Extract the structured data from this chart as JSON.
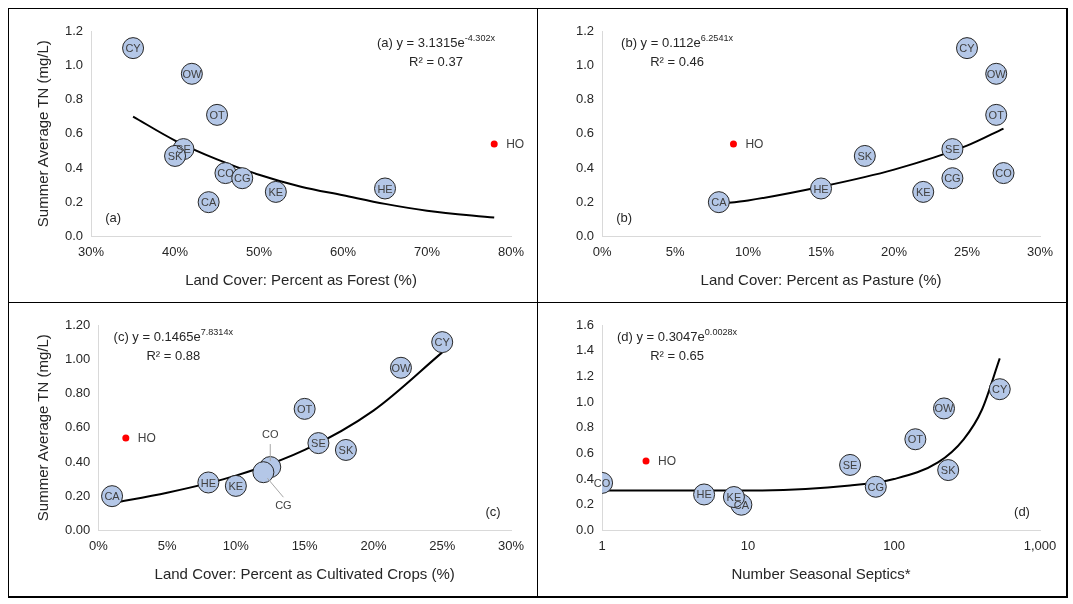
{
  "chart_data": [
    {
      "type": "scatter",
      "xlabel": "Land Cover: Percent as Forest (%)",
      "ylabel": "Summer Average TN (mg/L)",
      "marker": "circle",
      "grid": false,
      "legend": false,
      "xlim": [
        30,
        80
      ],
      "xticks": [
        {
          "value": 30,
          "label": "30%"
        },
        {
          "value": 40,
          "label": "40%"
        },
        {
          "value": 50,
          "label": "50%"
        },
        {
          "value": 60,
          "label": "60%"
        },
        {
          "value": 70,
          "label": "70%"
        },
        {
          "value": 80,
          "label": "80%"
        }
      ],
      "ylim": [
        0,
        1.2
      ],
      "yticks": [
        {
          "value": 0,
          "label": "0.0"
        },
        {
          "value": 0.2,
          "label": "0.2"
        },
        {
          "value": 0.4,
          "label": "0.4"
        },
        {
          "value": 0.6,
          "label": "0.6"
        },
        {
          "value": 0.8,
          "label": "0.8"
        },
        {
          "value": 1,
          "label": "1.0"
        },
        {
          "value": 1.2,
          "label": "1.2"
        }
      ],
      "series": [
        {
          "type": "scatter",
          "color": "#b4c7e7",
          "x": [
            35,
            42,
            45,
            41,
            40,
            46,
            48,
            44,
            52,
            65
          ],
          "values": [
            1.1,
            0.95,
            0.71,
            0.51,
            0.47,
            0.37,
            0.34,
            0.2,
            0.26,
            0.28
          ]
        },
        {
          "type": "scatter",
          "name": "HO",
          "color": "#ff0000",
          "x": [
            78
          ],
          "values": [
            0.54
          ]
        },
        {
          "type": "line",
          "color": "#000000",
          "marker": "none",
          "x": [
            35,
            40,
            45,
            50,
            55,
            60,
            65,
            70,
            78
          ],
          "values": [
            0.7,
            0.56,
            0.45,
            0.36,
            0.29,
            0.24,
            0.19,
            0.15,
            0.11
          ]
        }
      ],
      "annotations": [
        {
          "text": "CY",
          "x": 35,
          "y": 1.1
        },
        {
          "text": "OW",
          "x": 42,
          "y": 0.95
        },
        {
          "text": "OT",
          "x": 45,
          "y": 0.71
        },
        {
          "text": "SE",
          "x": 41,
          "y": 0.51
        },
        {
          "text": "SK",
          "x": 40,
          "y": 0.47
        },
        {
          "text": "CO",
          "x": 46,
          "y": 0.37
        },
        {
          "text": "CG",
          "x": 48,
          "y": 0.34
        },
        {
          "text": "CA",
          "x": 44,
          "y": 0.2
        },
        {
          "text": "KE",
          "x": 52,
          "y": 0.26
        },
        {
          "text": "HE",
          "x": 65,
          "y": 0.28
        },
        "(a) y = 3.1315e$^{-4.302x}$",
        "R² = 0.37",
        "(a)"
      ]
    },
    {
      "type": "scatter",
      "xlabel": "Land Cover: Percent as Pasture (%)",
      "marker": "circle",
      "grid": false,
      "legend": false,
      "xlim": [
        0,
        30
      ],
      "xticks": [
        {
          "value": 0,
          "label": "0%"
        },
        {
          "value": 5,
          "label": "5%"
        },
        {
          "value": 10,
          "label": "10%"
        },
        {
          "value": 15,
          "label": "15%"
        },
        {
          "value": 20,
          "label": "20%"
        },
        {
          "value": 25,
          "label": "25%"
        },
        {
          "value": 30,
          "label": "30%"
        }
      ],
      "ylim": [
        0,
        1.2
      ],
      "yticks": [
        {
          "value": 0,
          "label": "0.0"
        },
        {
          "value": 0.2,
          "label": "0.2"
        },
        {
          "value": 0.4,
          "label": "0.4"
        },
        {
          "value": 0.6,
          "label": "0.6"
        },
        {
          "value": 0.8,
          "label": "0.8"
        },
        {
          "value": 1,
          "label": "1.0"
        },
        {
          "value": 1.2,
          "label": "1.2"
        }
      ],
      "series": [
        {
          "type": "scatter",
          "color": "#b4c7e7",
          "x": [
            25,
            27,
            27,
            24,
            18,
            27.5,
            24,
            8,
            22,
            15
          ],
          "values": [
            1.1,
            0.95,
            0.71,
            0.51,
            0.47,
            0.37,
            0.34,
            0.2,
            0.26,
            0.28
          ]
        },
        {
          "type": "scatter",
          "name": "HO",
          "color": "#ff0000",
          "x": [
            9
          ],
          "values": [
            0.54
          ]
        },
        {
          "type": "line",
          "color": "#000000",
          "marker": "none",
          "x": [
            8,
            10,
            15,
            20,
            25,
            27.5
          ],
          "values": [
            0.19,
            0.21,
            0.29,
            0.39,
            0.53,
            0.63
          ]
        }
      ],
      "annotations": [
        {
          "text": "CY",
          "x": 25,
          "y": 1.1
        },
        {
          "text": "OW",
          "x": 27,
          "y": 0.95
        },
        {
          "text": "OT",
          "x": 27,
          "y": 0.71
        },
        {
          "text": "SE",
          "x": 24,
          "y": 0.51
        },
        {
          "text": "SK",
          "x": 18,
          "y": 0.47
        },
        {
          "text": "CO",
          "x": 27.5,
          "y": 0.37
        },
        {
          "text": "CG",
          "x": 24,
          "y": 0.34
        },
        {
          "text": "CA",
          "x": 8,
          "y": 0.2
        },
        {
          "text": "KE",
          "x": 22,
          "y": 0.26
        },
        {
          "text": "HE",
          "x": 15,
          "y": 0.28
        },
        "(b) y = 0.112e$^{6.2541x}$",
        "R² = 0.46",
        "(b)"
      ]
    },
    {
      "type": "scatter",
      "xlabel": "Land Cover: Percent as Cultivated Crops (%)",
      "ylabel": "Summer Average TN (mg/L)",
      "marker": "circle",
      "grid": false,
      "legend": false,
      "xlim": [
        0,
        30
      ],
      "xticks": [
        {
          "value": 0,
          "label": "0%"
        },
        {
          "value": 5,
          "label": "5%"
        },
        {
          "value": 10,
          "label": "10%"
        },
        {
          "value": 15,
          "label": "15%"
        },
        {
          "value": 20,
          "label": "20%"
        },
        {
          "value": 25,
          "label": "25%"
        },
        {
          "value": 30,
          "label": "30%"
        }
      ],
      "ylim": [
        0,
        1.2
      ],
      "yticks": [
        {
          "value": 0,
          "label": "0.00"
        },
        {
          "value": 0.2,
          "label": "0.20"
        },
        {
          "value": 0.4,
          "label": "0.40"
        },
        {
          "value": 0.6,
          "label": "0.60"
        },
        {
          "value": 0.8,
          "label": "0.80"
        },
        {
          "value": 1,
          "label": "1.00"
        },
        {
          "value": 1.2,
          "label": "1.20"
        }
      ],
      "series": [
        {
          "type": "scatter",
          "color": "#b4c7e7",
          "x": [
            25,
            22,
            15,
            16,
            18,
            12.5,
            12,
            1,
            10,
            8
          ],
          "values": [
            1.1,
            0.95,
            0.71,
            0.51,
            0.47,
            0.37,
            0.34,
            0.2,
            0.26,
            0.28
          ]
        },
        {
          "type": "scatter",
          "name": "HO",
          "color": "#ff0000",
          "x": [
            2
          ],
          "values": [
            0.54
          ]
        },
        {
          "type": "line",
          "color": "#000000",
          "marker": "none",
          "x": [
            1,
            5,
            10,
            15,
            20,
            25
          ],
          "values": [
            0.16,
            0.22,
            0.32,
            0.47,
            0.7,
            1.04
          ]
        }
      ],
      "annotations": [
        {
          "text": "CY",
          "x": 25,
          "y": 1.1
        },
        {
          "text": "OW",
          "x": 22,
          "y": 0.95
        },
        {
          "text": "OT",
          "x": 15,
          "y": 0.71
        },
        {
          "text": "SE",
          "x": 16,
          "y": 0.51
        },
        {
          "text": "SK",
          "x": 18,
          "y": 0.47
        },
        {
          "text": "CO",
          "x": 12.5,
          "y": 0.37
        },
        {
          "text": "CG",
          "x": 12,
          "y": 0.34
        },
        {
          "text": "CA",
          "x": 1,
          "y": 0.2
        },
        {
          "text": "KE",
          "x": 10,
          "y": 0.26
        },
        {
          "text": "HE",
          "x": 8,
          "y": 0.28
        },
        "(c) y = 0.1465e$^{7.8314x}$",
        "R² = 0.88",
        "(c)"
      ]
    },
    {
      "type": "scatter",
      "xlabel": "Number Seasonal Septics*",
      "marker": "circle",
      "grid": false,
      "legend": false,
      "log": "x",
      "xlim": [
        1,
        1000
      ],
      "xticks": [
        1,
        10,
        100,
        {
          "value": 1000,
          "label": "1,000"
        }
      ],
      "ylim": [
        0,
        1.6
      ],
      "yticks": [
        {
          "value": 0,
          "label": "0.0"
        },
        {
          "value": 0.2,
          "label": "0.2"
        },
        {
          "value": 0.4,
          "label": "0.4"
        },
        {
          "value": 0.6,
          "label": "0.6"
        },
        {
          "value": 0.8,
          "label": "0.8"
        },
        {
          "value": 1,
          "label": "1.0"
        },
        {
          "value": 1.2,
          "label": "1.2"
        },
        {
          "value": 1.4,
          "label": "1.4"
        },
        {
          "value": 1.6,
          "label": "1.6"
        }
      ],
      "series": [
        {
          "type": "scatter",
          "color": "#b4c7e7",
          "x": [
            530,
            220,
            140,
            50,
            235,
            1,
            75,
            9,
            8,
            5
          ],
          "values": [
            1.1,
            0.95,
            0.71,
            0.51,
            0.47,
            0.37,
            0.34,
            0.2,
            0.26,
            0.28
          ]
        },
        {
          "type": "scatter",
          "name": "HO",
          "color": "#ff0000",
          "x": [
            2
          ],
          "values": [
            0.54
          ]
        },
        {
          "type": "line",
          "color": "#000000",
          "marker": "none",
          "x": [
            1,
            10,
            50,
            100,
            200,
            300,
            400,
            530
          ],
          "values": [
            0.31,
            0.31,
            0.35,
            0.4,
            0.53,
            0.71,
            0.94,
            1.34
          ]
        }
      ],
      "annotations": [
        {
          "text": "CY",
          "x": 530,
          "y": 1.1
        },
        {
          "text": "OW",
          "x": 220,
          "y": 0.95
        },
        {
          "text": "OT",
          "x": 140,
          "y": 0.71
        },
        {
          "text": "SE",
          "x": 50,
          "y": 0.51
        },
        {
          "text": "SK",
          "x": 235,
          "y": 0.47
        },
        {
          "text": "CO",
          "x": 1,
          "y": 0.37
        },
        {
          "text": "CG",
          "x": 75,
          "y": 0.34
        },
        {
          "text": "CA",
          "x": 9,
          "y": 0.2
        },
        {
          "text": "KE",
          "x": 8,
          "y": 0.26
        },
        {
          "text": "HE",
          "x": 5,
          "y": 0.28
        },
        "(d) y = 0.3047e$^{0.0028x}$",
        "R² = 0.65",
        "(d)"
      ]
    }
  ]
}
